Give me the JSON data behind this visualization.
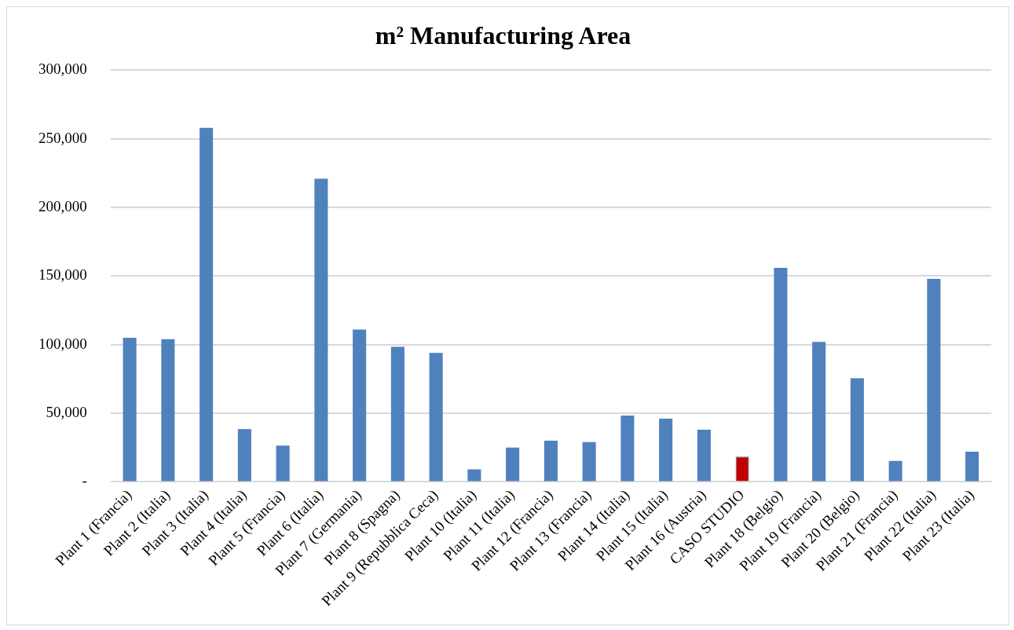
{
  "chart_data": {
    "type": "bar",
    "title": "m² Manufacturing Area",
    "categories": [
      "Plant 1 (Francia)",
      "Plant 2 (Italia)",
      "Plant 3 (Italia)",
      "Plant 4 (Italia)",
      "Plant 5 (Francia)",
      "Plant 6 (Italia)",
      "Plant 7 (Germania)",
      "Plant 8 (Spagna)",
      "Plant 9 (Repubblica Ceca)",
      "Plant 10 (Italia)",
      "Plant 11 (Italia)",
      "Plant 12 (Francia)",
      "Plant 13 (Francia)",
      "Plant 14 (Italia)",
      "Plant 15 (Italia)",
      "Plant 16 (Austria)",
      "CASO STUDIO",
      "Plant 18 (Belgio)",
      "Plant 19 (Francia)",
      "Plant 20 (Belgio)",
      "Plant 21 (Francia)",
      "Plant 22 (Italia)",
      "Plant 23 (Italia)"
    ],
    "values": [
      105000,
      104000,
      258000,
      38500,
      26400,
      221000,
      111000,
      98500,
      94000,
      9200,
      25000,
      30000,
      29000,
      48400,
      46000,
      38000,
      18400,
      156000,
      102000,
      75500,
      15300,
      148000,
      22000
    ],
    "colors": [
      "#4f81bd",
      "#4f81bd",
      "#4f81bd",
      "#4f81bd",
      "#4f81bd",
      "#4f81bd",
      "#4f81bd",
      "#4f81bd",
      "#4f81bd",
      "#4f81bd",
      "#4f81bd",
      "#4f81bd",
      "#4f81bd",
      "#4f81bd",
      "#4f81bd",
      "#4f81bd",
      "#c00000",
      "#4f81bd",
      "#4f81bd",
      "#4f81bd",
      "#4f81bd",
      "#4f81bd",
      "#4f81bd"
    ],
    "ylim": [
      0,
      300000
    ],
    "yticks": [
      {
        "value": 0,
        "label": "-"
      },
      {
        "value": 50000,
        "label": "50,000"
      },
      {
        "value": 100000,
        "label": "100,000"
      },
      {
        "value": 150000,
        "label": "150,000"
      },
      {
        "value": 200000,
        "label": "200,000"
      },
      {
        "value": 250000,
        "label": "250,000"
      },
      {
        "value": 300000,
        "label": "300,000"
      }
    ],
    "grid": "y",
    "legend": false
  }
}
